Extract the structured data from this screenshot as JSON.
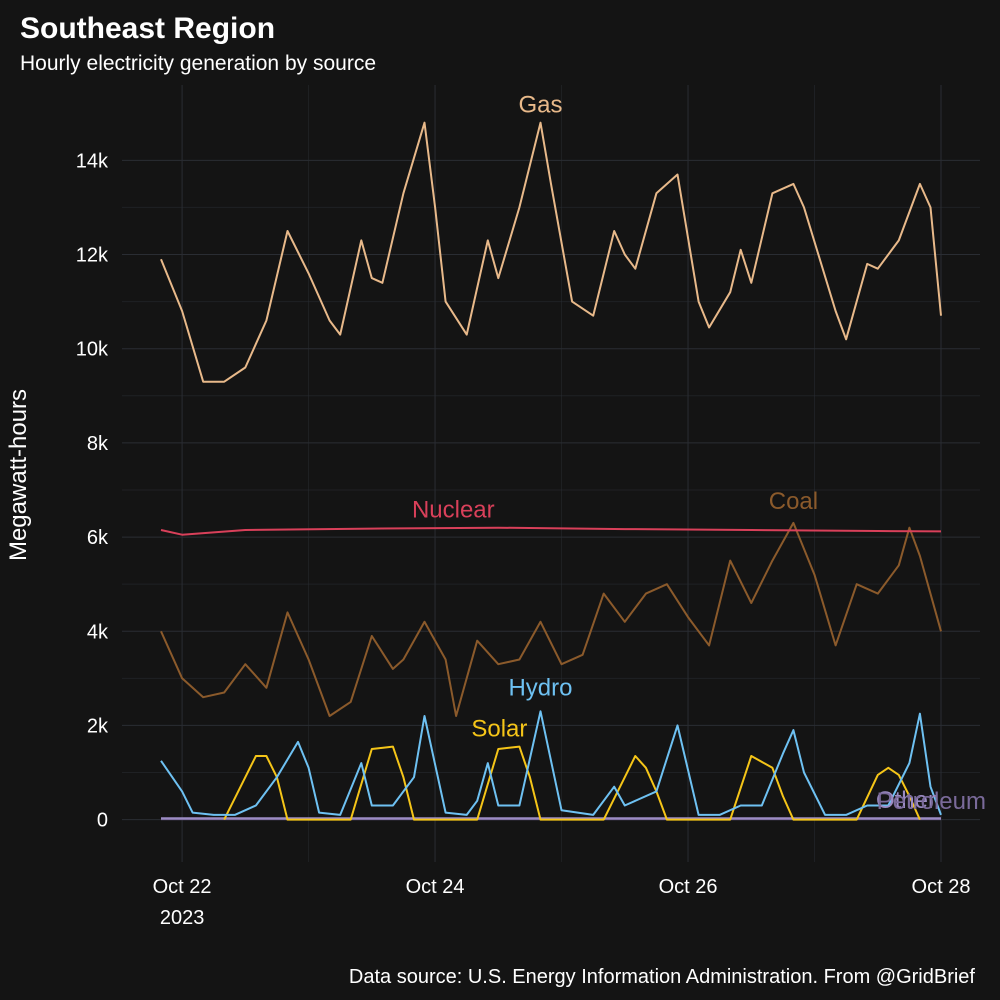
{
  "chart_data": {
    "type": "line",
    "title": "Southeast Region",
    "subtitle": "Hourly electricity generation by source",
    "ylabel": "Megawatt-hours",
    "caption": "Data source: U.S. Energy Information Administration. From @GridBrief",
    "x_range": [
      "2023-10-21 20:00",
      "2023-10-28 00:00"
    ],
    "ylim": [
      -900,
      15600
    ],
    "y_ticks": [
      0,
      2000,
      4000,
      6000,
      8000,
      10000,
      12000,
      14000
    ],
    "y_tick_labels": [
      "0",
      "2k",
      "4k",
      "6k",
      "8k",
      "10k",
      "12k",
      "14k"
    ],
    "x_ticks": [
      "2023-10-22",
      "2023-10-24",
      "2023-10-26",
      "2023-10-28"
    ],
    "x_tick_labels": [
      "Oct 22",
      "Oct 24",
      "Oct 26",
      "Oct 28"
    ],
    "x_tick_year": "2023",
    "grid": true,
    "legend": "direct labels",
    "series": [
      {
        "name": "Gas",
        "color": "#e8b98a",
        "points": [
          [
            "2023-10-21 20:00",
            11900
          ],
          [
            "2023-10-22 00:00",
            10800
          ],
          [
            "2023-10-22 04:00",
            9300
          ],
          [
            "2023-10-22 08:00",
            9300
          ],
          [
            "2023-10-22 12:00",
            9600
          ],
          [
            "2023-10-22 16:00",
            10600
          ],
          [
            "2023-10-22 20:00",
            12500
          ],
          [
            "2023-10-23 00:00",
            11600
          ],
          [
            "2023-10-23 04:00",
            10600
          ],
          [
            "2023-10-23 06:00",
            10300
          ],
          [
            "2023-10-23 10:00",
            12300
          ],
          [
            "2023-10-23 12:00",
            11500
          ],
          [
            "2023-10-23 14:00",
            11400
          ],
          [
            "2023-10-23 18:00",
            13300
          ],
          [
            "2023-10-23 22:00",
            14800
          ],
          [
            "2023-10-24 00:00",
            13000
          ],
          [
            "2023-10-24 02:00",
            11000
          ],
          [
            "2023-10-24 06:00",
            10300
          ],
          [
            "2023-10-24 10:00",
            12300
          ],
          [
            "2023-10-24 12:00",
            11500
          ],
          [
            "2023-10-24 16:00",
            13000
          ],
          [
            "2023-10-24 20:00",
            14800
          ],
          [
            "2023-10-24 22:00",
            13500
          ],
          [
            "2023-10-25 02:00",
            11000
          ],
          [
            "2023-10-25 06:00",
            10700
          ],
          [
            "2023-10-25 10:00",
            12500
          ],
          [
            "2023-10-25 12:00",
            12000
          ],
          [
            "2023-10-25 14:00",
            11700
          ],
          [
            "2023-10-25 18:00",
            13300
          ],
          [
            "2023-10-25 22:00",
            13700
          ],
          [
            "2023-10-26 02:00",
            11000
          ],
          [
            "2023-10-26 04:00",
            10450
          ],
          [
            "2023-10-26 08:00",
            11200
          ],
          [
            "2023-10-26 10:00",
            12100
          ],
          [
            "2023-10-26 12:00",
            11400
          ],
          [
            "2023-10-26 16:00",
            13300
          ],
          [
            "2023-10-26 20:00",
            13500
          ],
          [
            "2023-10-26 22:00",
            13000
          ],
          [
            "2023-10-27 04:00",
            10800
          ],
          [
            "2023-10-27 06:00",
            10200
          ],
          [
            "2023-10-27 10:00",
            11800
          ],
          [
            "2023-10-27 12:00",
            11700
          ],
          [
            "2023-10-27 16:00",
            12300
          ],
          [
            "2023-10-27 20:00",
            13500
          ],
          [
            "2023-10-27 22:00",
            13000
          ],
          [
            "2023-10-28 00:00",
            10700
          ]
        ]
      },
      {
        "name": "Nuclear",
        "color": "#d9405a",
        "points": [
          [
            "2023-10-21 20:00",
            6150
          ],
          [
            "2023-10-22 00:00",
            6050
          ],
          [
            "2023-10-22 12:00",
            6150
          ],
          [
            "2023-10-23 12:00",
            6180
          ],
          [
            "2023-10-24 12:00",
            6200
          ],
          [
            "2023-10-25 12:00",
            6170
          ],
          [
            "2023-10-26 12:00",
            6150
          ],
          [
            "2023-10-27 12:00",
            6130
          ],
          [
            "2023-10-28 00:00",
            6120
          ]
        ]
      },
      {
        "name": "Coal",
        "color": "#8b5a2b",
        "points": [
          [
            "2023-10-21 20:00",
            4000
          ],
          [
            "2023-10-22 00:00",
            3000
          ],
          [
            "2023-10-22 04:00",
            2600
          ],
          [
            "2023-10-22 08:00",
            2700
          ],
          [
            "2023-10-22 12:00",
            3300
          ],
          [
            "2023-10-22 16:00",
            2800
          ],
          [
            "2023-10-22 20:00",
            4400
          ],
          [
            "2023-10-23 00:00",
            3400
          ],
          [
            "2023-10-23 04:00",
            2200
          ],
          [
            "2023-10-23 08:00",
            2500
          ],
          [
            "2023-10-23 12:00",
            3900
          ],
          [
            "2023-10-23 16:00",
            3200
          ],
          [
            "2023-10-23 18:00",
            3400
          ],
          [
            "2023-10-23 22:00",
            4200
          ],
          [
            "2023-10-24 02:00",
            3400
          ],
          [
            "2023-10-24 04:00",
            2200
          ],
          [
            "2023-10-24 08:00",
            3800
          ],
          [
            "2023-10-24 12:00",
            3300
          ],
          [
            "2023-10-24 16:00",
            3400
          ],
          [
            "2023-10-24 20:00",
            4200
          ],
          [
            "2023-10-25 00:00",
            3300
          ],
          [
            "2023-10-25 04:00",
            3500
          ],
          [
            "2023-10-25 08:00",
            4800
          ],
          [
            "2023-10-25 12:00",
            4200
          ],
          [
            "2023-10-25 16:00",
            4800
          ],
          [
            "2023-10-25 20:00",
            5000
          ],
          [
            "2023-10-26 00:00",
            4300
          ],
          [
            "2023-10-26 04:00",
            3700
          ],
          [
            "2023-10-26 08:00",
            5500
          ],
          [
            "2023-10-26 12:00",
            4600
          ],
          [
            "2023-10-26 16:00",
            5500
          ],
          [
            "2023-10-26 20:00",
            6300
          ],
          [
            "2023-10-27 00:00",
            5200
          ],
          [
            "2023-10-27 04:00",
            3700
          ],
          [
            "2023-10-27 08:00",
            5000
          ],
          [
            "2023-10-27 12:00",
            4800
          ],
          [
            "2023-10-27 16:00",
            5400
          ],
          [
            "2023-10-27 18:00",
            6200
          ],
          [
            "2023-10-27 20:00",
            5600
          ],
          [
            "2023-10-28 00:00",
            4000
          ]
        ]
      },
      {
        "name": "Hydro",
        "color": "#6ec1f2",
        "points": [
          [
            "2023-10-21 20:00",
            1250
          ],
          [
            "2023-10-22 00:00",
            600
          ],
          [
            "2023-10-22 02:00",
            150
          ],
          [
            "2023-10-22 06:00",
            100
          ],
          [
            "2023-10-22 10:00",
            100
          ],
          [
            "2023-10-22 14:00",
            300
          ],
          [
            "2023-10-22 18:00",
            900
          ],
          [
            "2023-10-22 22:00",
            1650
          ],
          [
            "2023-10-23 00:00",
            1100
          ],
          [
            "2023-10-23 02:00",
            150
          ],
          [
            "2023-10-23 06:00",
            100
          ],
          [
            "2023-10-23 10:00",
            1200
          ],
          [
            "2023-10-23 12:00",
            300
          ],
          [
            "2023-10-23 16:00",
            300
          ],
          [
            "2023-10-23 20:00",
            900
          ],
          [
            "2023-10-23 22:00",
            2200
          ],
          [
            "2023-10-24 02:00",
            150
          ],
          [
            "2023-10-24 06:00",
            100
          ],
          [
            "2023-10-24 08:00",
            400
          ],
          [
            "2023-10-24 10:00",
            1200
          ],
          [
            "2023-10-24 12:00",
            300
          ],
          [
            "2023-10-24 16:00",
            300
          ],
          [
            "2023-10-24 20:00",
            2300
          ],
          [
            "2023-10-25 00:00",
            200
          ],
          [
            "2023-10-25 06:00",
            100
          ],
          [
            "2023-10-25 10:00",
            700
          ],
          [
            "2023-10-25 12:00",
            300
          ],
          [
            "2023-10-25 18:00",
            600
          ],
          [
            "2023-10-25 22:00",
            2000
          ],
          [
            "2023-10-26 02:00",
            100
          ],
          [
            "2023-10-26 06:00",
            100
          ],
          [
            "2023-10-26 10:00",
            300
          ],
          [
            "2023-10-26 14:00",
            300
          ],
          [
            "2023-10-26 18:00",
            1400
          ],
          [
            "2023-10-26 20:00",
            1900
          ],
          [
            "2023-10-26 22:00",
            1000
          ],
          [
            "2023-10-27 02:00",
            100
          ],
          [
            "2023-10-27 06:00",
            100
          ],
          [
            "2023-10-27 10:00",
            300
          ],
          [
            "2023-10-27 14:00",
            300
          ],
          [
            "2023-10-27 18:00",
            1200
          ],
          [
            "2023-10-27 20:00",
            2250
          ],
          [
            "2023-10-27 22:00",
            700
          ],
          [
            "2023-10-28 00:00",
            100
          ]
        ]
      },
      {
        "name": "Solar",
        "color": "#f5c518",
        "points": [
          [
            "2023-10-22 08:00",
            0
          ],
          [
            "2023-10-22 12:00",
            900
          ],
          [
            "2023-10-22 14:00",
            1350
          ],
          [
            "2023-10-22 16:00",
            1350
          ],
          [
            "2023-10-22 18:00",
            900
          ],
          [
            "2023-10-22 20:00",
            0
          ],
          [
            "2023-10-23 08:00",
            0
          ],
          [
            "2023-10-23 12:00",
            1500
          ],
          [
            "2023-10-23 16:00",
            1550
          ],
          [
            "2023-10-23 18:00",
            900
          ],
          [
            "2023-10-23 20:00",
            0
          ],
          [
            "2023-10-24 08:00",
            0
          ],
          [
            "2023-10-24 12:00",
            1500
          ],
          [
            "2023-10-24 16:00",
            1550
          ],
          [
            "2023-10-24 18:00",
            900
          ],
          [
            "2023-10-24 20:00",
            0
          ],
          [
            "2023-10-25 08:00",
            0
          ],
          [
            "2023-10-25 12:00",
            900
          ],
          [
            "2023-10-25 14:00",
            1350
          ],
          [
            "2023-10-25 16:00",
            1100
          ],
          [
            "2023-10-25 18:00",
            600
          ],
          [
            "2023-10-25 20:00",
            0
          ],
          [
            "2023-10-26 08:00",
            0
          ],
          [
            "2023-10-26 12:00",
            1350
          ],
          [
            "2023-10-26 16:00",
            1100
          ],
          [
            "2023-10-26 18:00",
            500
          ],
          [
            "2023-10-26 20:00",
            0
          ],
          [
            "2023-10-27 08:00",
            0
          ],
          [
            "2023-10-27 12:00",
            950
          ],
          [
            "2023-10-27 14:00",
            1100
          ],
          [
            "2023-10-27 16:00",
            950
          ],
          [
            "2023-10-27 18:00",
            500
          ],
          [
            "2023-10-27 20:00",
            0
          ]
        ]
      },
      {
        "name": "Other",
        "color": "#9c8cc4",
        "points": [
          [
            "2023-10-21 20:00",
            30
          ],
          [
            "2023-10-28 00:00",
            30
          ]
        ]
      },
      {
        "name": "Petroleum",
        "color": "#7a6a9a",
        "points": [
          [
            "2023-10-21 20:00",
            10
          ],
          [
            "2023-10-28 00:00",
            10
          ]
        ]
      }
    ],
    "annotations": [
      {
        "text": "Gas",
        "series": "Gas",
        "at": [
          "2023-10-24 20:00",
          14800
        ]
      },
      {
        "text": "Nuclear",
        "series": "Nuclear",
        "at": [
          "2023-10-24 12:00",
          6200
        ]
      },
      {
        "text": "Coal",
        "series": "Coal",
        "at": [
          "2023-10-26 20:00",
          6300
        ]
      },
      {
        "text": "Hydro",
        "series": "Hydro",
        "at": [
          "2023-10-24 20:00",
          2300
        ]
      },
      {
        "text": "Solar",
        "series": "Solar",
        "at": [
          "2023-10-24 16:00",
          1550
        ]
      },
      {
        "text": "Other",
        "series": "Other",
        "at": [
          "2023-10-28 00:00",
          30
        ]
      },
      {
        "text": "Petroleum",
        "series": "Petroleum",
        "at": [
          "2023-10-28 00:00",
          10
        ]
      }
    ]
  }
}
